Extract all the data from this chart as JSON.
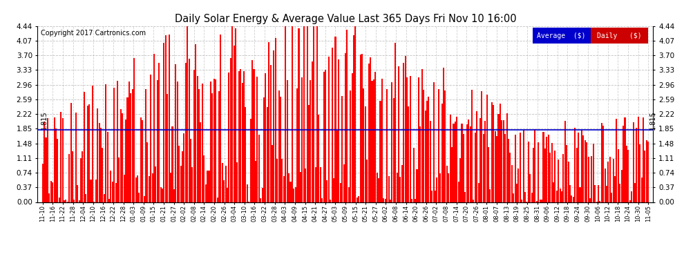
{
  "title": "Daily Solar Energy & Average Value Last 365 Days Fri Nov 10 16:00",
  "copyright": "Copyright 2017 Cartronics.com",
  "average_line": 1.815,
  "average_label": "1.815",
  "ylim": [
    0.0,
    4.44
  ],
  "yticks": [
    0.0,
    0.37,
    0.74,
    1.11,
    1.48,
    1.85,
    2.22,
    2.59,
    2.96,
    3.33,
    3.7,
    4.07,
    4.44
  ],
  "bar_color": "#ff0000",
  "avg_line_color": "#0000cc",
  "background_color": "#ffffff",
  "grid_color": "#b0b0b0",
  "legend_avg_bg": "#0000cc",
  "legend_daily_bg": "#cc0000",
  "legend_text_color": "#ffffff",
  "x_tick_labels": [
    "11-10",
    "11-16",
    "11-22",
    "11-28",
    "12-04",
    "12-10",
    "12-16",
    "12-22",
    "12-28",
    "01-03",
    "01-09",
    "01-15",
    "01-21",
    "01-27",
    "02-02",
    "02-08",
    "02-14",
    "02-20",
    "02-26",
    "03-04",
    "03-10",
    "03-16",
    "03-22",
    "03-28",
    "04-03",
    "04-09",
    "04-15",
    "04-21",
    "04-27",
    "05-03",
    "05-09",
    "05-15",
    "05-21",
    "05-27",
    "06-02",
    "06-08",
    "06-14",
    "06-20",
    "06-26",
    "07-02",
    "07-08",
    "07-14",
    "07-20",
    "07-26",
    "08-01",
    "08-07",
    "08-13",
    "08-19",
    "08-25",
    "08-31",
    "09-06",
    "09-12",
    "09-18",
    "09-24",
    "09-30",
    "10-06",
    "10-12",
    "10-18",
    "10-24",
    "10-30",
    "11-05"
  ],
  "n_bars": 365,
  "seed": 42
}
